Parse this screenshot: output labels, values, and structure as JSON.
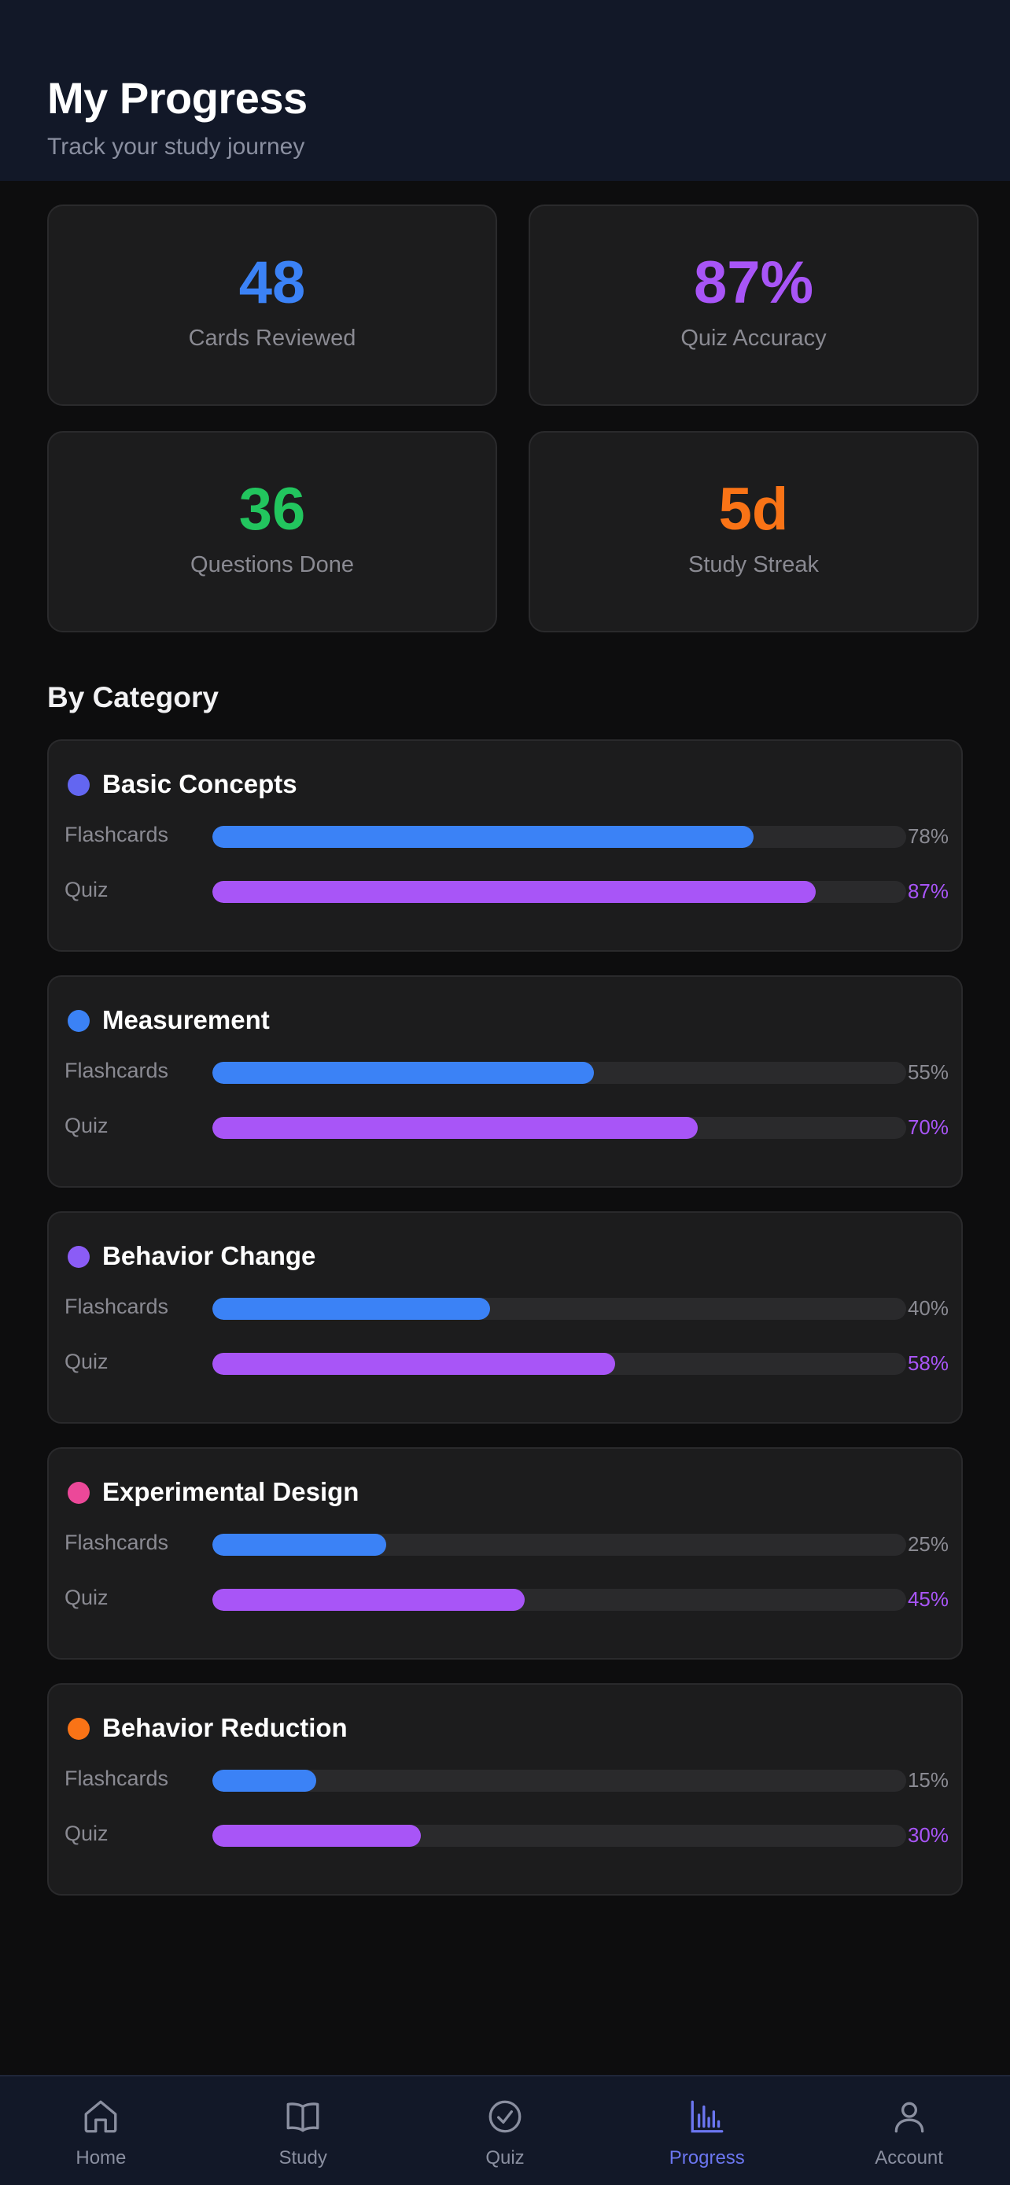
{
  "header": {
    "title": "My Progress",
    "subtitle": "Track your study journey"
  },
  "stats": [
    {
      "value": "48",
      "label": "Cards Reviewed",
      "color": "#3b82f6"
    },
    {
      "value": "87%",
      "label": "Quiz Accuracy",
      "color": "#a855f7"
    },
    {
      "value": "36",
      "label": "Questions Done",
      "color": "#22c55e"
    },
    {
      "value": "5d",
      "label": "Study Streak",
      "color": "#f97316"
    }
  ],
  "section": {
    "title": "By Category"
  },
  "row_labels": {
    "flashcards": "Flashcards",
    "quiz": "Quiz"
  },
  "categories": [
    {
      "name": "Basic Concepts",
      "dot_color": "#6366f1",
      "flashcards_pct": 78,
      "quiz_pct": 87,
      "flashcards_text": "78%",
      "quiz_text": "87%"
    },
    {
      "name": "Measurement",
      "dot_color": "#3b82f6",
      "flashcards_pct": 55,
      "quiz_pct": 70,
      "flashcards_text": "55%",
      "quiz_text": "70%"
    },
    {
      "name": "Behavior Change",
      "dot_color": "#8b5cf6",
      "flashcards_pct": 40,
      "quiz_pct": 58,
      "flashcards_text": "40%",
      "quiz_text": "58%"
    },
    {
      "name": "Experimental Design",
      "dot_color": "#ec4899",
      "flashcards_pct": 25,
      "quiz_pct": 45,
      "flashcards_text": "25%",
      "quiz_text": "45%"
    },
    {
      "name": "Behavior Reduction",
      "dot_color": "#f97316",
      "flashcards_pct": 15,
      "quiz_pct": 30,
      "flashcards_text": "15%",
      "quiz_text": "30%"
    }
  ],
  "nav": {
    "items": [
      {
        "label": "Home",
        "icon": "home-icon"
      },
      {
        "label": "Study",
        "icon": "book-icon"
      },
      {
        "label": "Quiz",
        "icon": "check-circle-icon"
      },
      {
        "label": "Progress",
        "icon": "bar-chart-icon",
        "active": true
      },
      {
        "label": "Account",
        "icon": "user-icon"
      }
    ],
    "active_color": "#6b76f0"
  }
}
